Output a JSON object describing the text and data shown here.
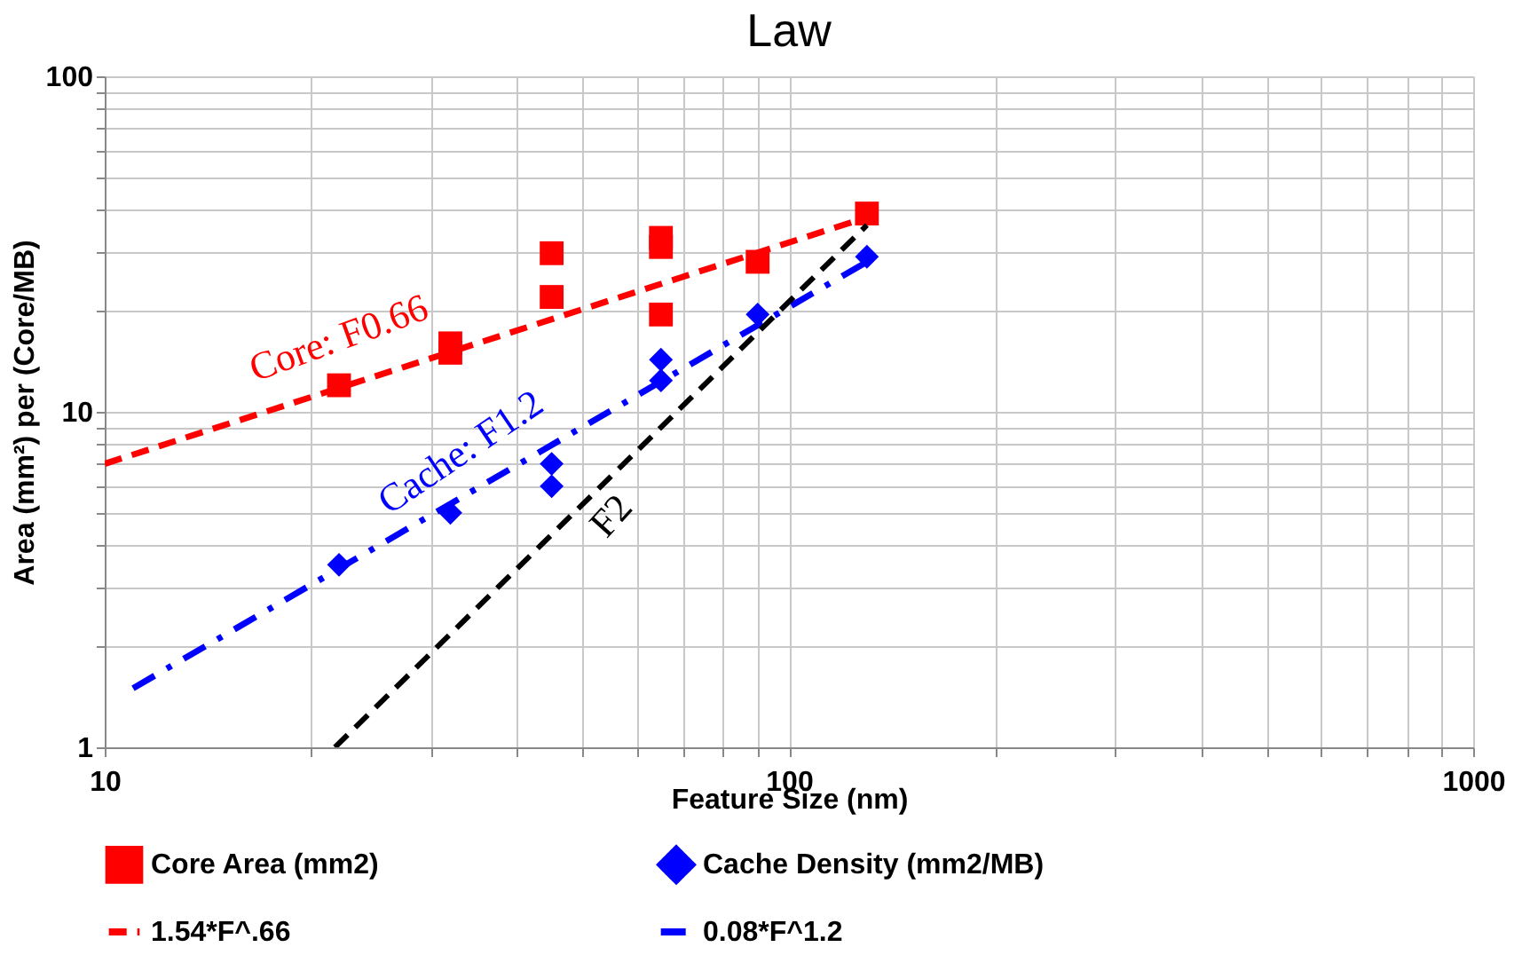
{
  "chart_data": {
    "type": "scatter",
    "title": "Law",
    "xlabel": "Feature Size (nm)",
    "ylabel": "Area (mm²) per (Core/MB)",
    "log": "xy",
    "grid": true,
    "legend": "bottom",
    "xlim": [
      10,
      1000
    ],
    "ylim": [
      1,
      100
    ],
    "xticks": [
      10,
      {
        "value": 20,
        "label": null
      },
      {
        "value": 30,
        "label": null
      },
      {
        "value": 40,
        "label": null
      },
      {
        "value": 50,
        "label": null
      },
      {
        "value": 60,
        "label": null
      },
      {
        "value": 70,
        "label": null
      },
      {
        "value": 80,
        "label": null
      },
      {
        "value": 90,
        "label": null
      },
      100,
      {
        "value": 200,
        "label": null
      },
      {
        "value": 300,
        "label": null
      },
      {
        "value": 400,
        "label": null
      },
      {
        "value": 500,
        "label": null
      },
      {
        "value": 600,
        "label": null
      },
      {
        "value": 700,
        "label": null
      },
      {
        "value": 800,
        "label": null
      },
      {
        "value": 900,
        "label": null
      },
      1000
    ],
    "yticks": [
      1,
      {
        "value": 2,
        "label": null
      },
      {
        "value": 3,
        "label": null
      },
      {
        "value": 4,
        "label": null
      },
      {
        "value": 5,
        "label": null
      },
      {
        "value": 6,
        "label": null
      },
      {
        "value": 7,
        "label": null
      },
      {
        "value": 8,
        "label": null
      },
      {
        "value": 9,
        "label": null
      },
      10,
      {
        "value": 20,
        "label": null
      },
      {
        "value": 30,
        "label": null
      },
      {
        "value": 40,
        "label": null
      },
      {
        "value": 50,
        "label": null
      },
      {
        "value": 60,
        "label": null
      },
      {
        "value": 70,
        "label": null
      },
      {
        "value": 80,
        "label": null
      },
      {
        "value": 90,
        "label": null
      },
      100
    ],
    "series": [
      {
        "name": "Core Area (mm2)",
        "marker": "square",
        "color": "#ff0000",
        "x": [
          22,
          32,
          32,
          45,
          45,
          65,
          65,
          65,
          90,
          130
        ],
        "values": [
          12,
          16,
          15,
          29.7,
          22,
          33,
          31,
          19.5,
          28,
          39
        ]
      },
      {
        "name": "Cache Density (mm2/MB)",
        "marker": "diamond",
        "color": "#0000ff",
        "x": [
          22,
          32,
          45,
          45,
          65,
          65,
          90,
          130
        ],
        "values": [
          3.5,
          5,
          7,
          6,
          14.3,
          12.4,
          19.5,
          29
        ]
      },
      {
        "name": "1.54*F^.66",
        "type": "line",
        "line_style": "dashed",
        "color": "#ff0000",
        "x": [
          10,
          130
        ],
        "values": [
          7.0,
          38
        ]
      },
      {
        "name": "0.08*F^1.2",
        "type": "line",
        "line_style": "dashdot",
        "color": "#0000ff",
        "x": [
          11,
          130
        ],
        "values": [
          1.5,
          28
        ]
      },
      {
        "type": "line",
        "line_style": "dashed",
        "color": "#000000",
        "x": [
          21.7,
          130
        ],
        "values": [
          1,
          36
        ]
      }
    ],
    "annotations": [
      "Core: F0.66",
      "Cache: F1.2",
      "F2"
    ]
  }
}
